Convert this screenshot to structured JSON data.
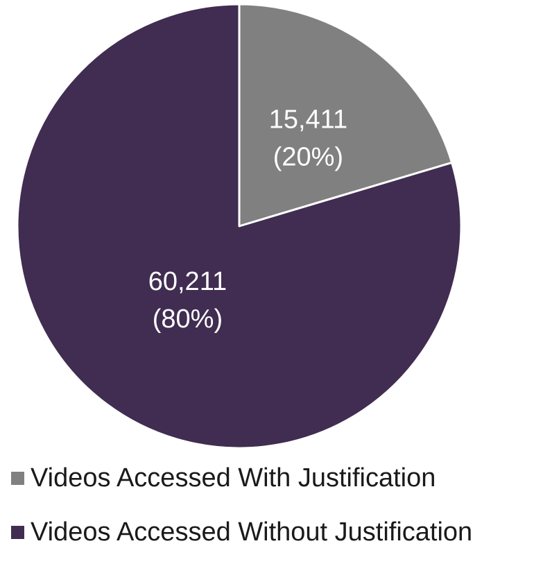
{
  "chart_data": {
    "type": "pie",
    "title": "",
    "slices": [
      {
        "name": "Videos Accessed With Justification",
        "value": 15411,
        "percent": 20,
        "value_label": "15,411",
        "percent_label": "(20%)",
        "color": "#808080"
      },
      {
        "name": "Videos Accessed Without Justification",
        "value": 60211,
        "percent": 80,
        "value_label": "60,211",
        "percent_label": "(80%)",
        "color": "#402d51"
      }
    ],
    "start_angle": "12 o'clock",
    "direction": "clockwise",
    "legend_position": "bottom"
  },
  "legend": {
    "items": [
      {
        "label": "Videos Accessed With Justification",
        "color": "#808080"
      },
      {
        "label": "Videos Accessed Without Justification",
        "color": "#402d51"
      }
    ]
  }
}
